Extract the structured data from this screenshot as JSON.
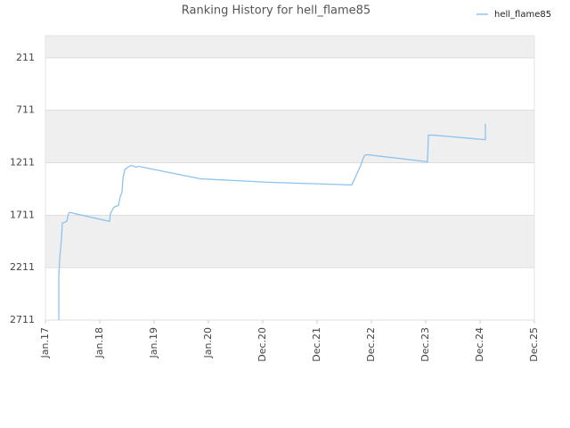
{
  "chart_data": {
    "type": "line",
    "title": "Ranking History for hell_flame85",
    "x": [
      0.246,
      0.246,
      0.262,
      0.295,
      0.311,
      0.393,
      0.426,
      0.443,
      1.18,
      1.197,
      1.262,
      1.344,
      1.377,
      1.41,
      1.426,
      1.459,
      1.492,
      1.574,
      1.672,
      1.721,
      2.033,
      2.852,
      4.082,
      5.639,
      5.721,
      5.803,
      5.869,
      5.918,
      7.033,
      7.049,
      7.131,
      8.098,
      8.098
    ],
    "series": [
      {
        "name": "hell_flame85",
        "color": "#8ec3ee",
        "values": [
          2711,
          2296,
          2126,
          1940,
          1787,
          1770,
          1694,
          1685,
          1770,
          1694,
          1635,
          1618,
          1533,
          1491,
          1364,
          1279,
          1262,
          1236,
          1253,
          1245,
          1279,
          1364,
          1397,
          1423,
          1330,
          1236,
          1143,
          1134,
          1202,
          948,
          948,
          991,
          838
        ]
      }
    ],
    "xlim": [
      0,
      9
    ],
    "xticks": [
      {
        "value": 0,
        "label": "Jan.17"
      },
      {
        "value": 1,
        "label": "Jan.18"
      },
      {
        "value": 2,
        "label": "Jan.19"
      },
      {
        "value": 3,
        "label": "Jan.20"
      },
      {
        "value": 4,
        "label": "Dec.20"
      },
      {
        "value": 5,
        "label": "Dec.21"
      },
      {
        "value": 6,
        "label": "Dec.22"
      },
      {
        "value": 7,
        "label": "Dec.23"
      },
      {
        "value": 8,
        "label": "Dec.24"
      },
      {
        "value": 9,
        "label": "Dec.25"
      }
    ],
    "ylim": [
      2711,
      0
    ],
    "yticks": [
      211,
      711,
      1211,
      1711,
      2211,
      2711
    ],
    "grid": true,
    "legend": "top-right"
  }
}
